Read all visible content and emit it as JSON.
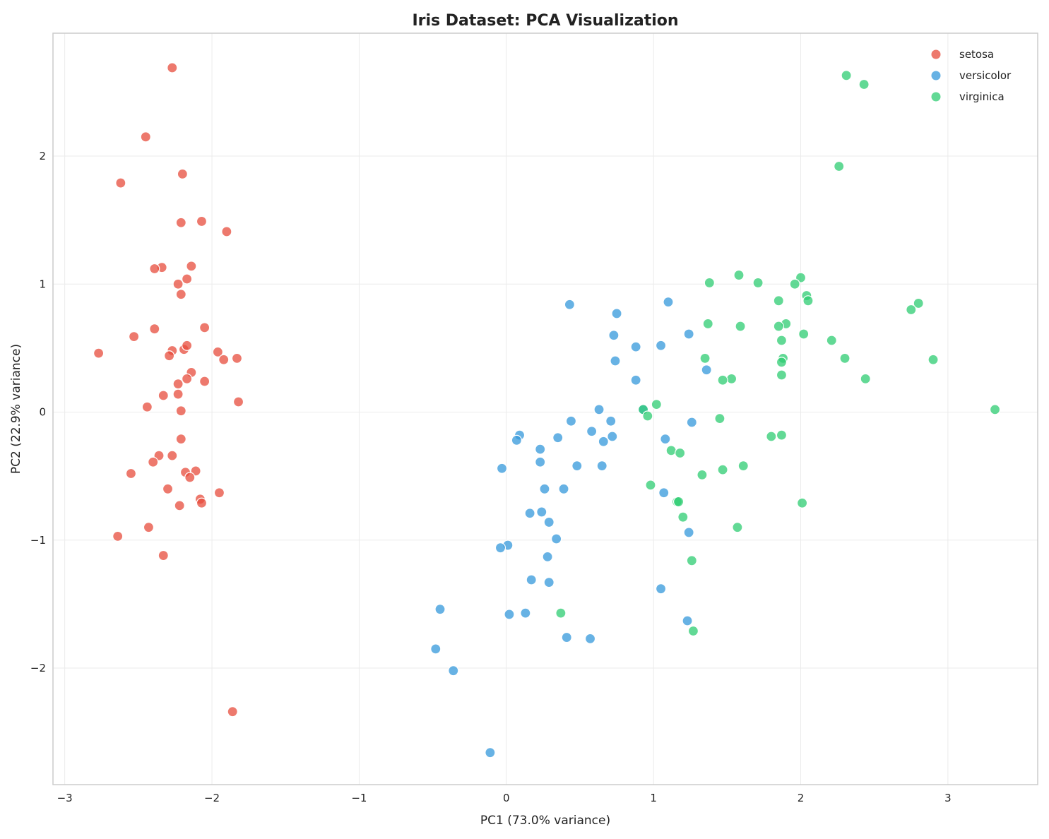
{
  "chart_data": {
    "type": "scatter",
    "title": "Iris Dataset: PCA Visualization",
    "xlabel": "PC1 (73.0% variance)",
    "ylabel": "PC2 (22.9% variance)",
    "xlim": [
      -3.08,
      3.61
    ],
    "ylim": [
      -2.91,
      2.96
    ],
    "xticks": [
      -3,
      -2,
      -1,
      0,
      1,
      2,
      3
    ],
    "yticks": [
      -2,
      -1,
      0,
      1,
      2
    ],
    "grid": true,
    "legend_position": "top-right",
    "series": [
      {
        "name": "setosa",
        "color": "#e74c3c",
        "points": [
          [
            -2.27,
            2.69
          ],
          [
            -2.45,
            2.15
          ],
          [
            -2.2,
            1.86
          ],
          [
            -2.62,
            1.79
          ],
          [
            -2.21,
            1.48
          ],
          [
            -2.07,
            1.49
          ],
          [
            -1.9,
            1.41
          ],
          [
            -2.34,
            1.13
          ],
          [
            -2.39,
            1.12
          ],
          [
            -2.14,
            1.14
          ],
          [
            -2.17,
            1.04
          ],
          [
            -2.23,
            1.0
          ],
          [
            -2.21,
            0.92
          ],
          [
            -2.39,
            0.65
          ],
          [
            -2.05,
            0.66
          ],
          [
            -2.53,
            0.59
          ],
          [
            -2.77,
            0.46
          ],
          [
            -2.27,
            0.48
          ],
          [
            -2.19,
            0.49
          ],
          [
            -2.17,
            0.52
          ],
          [
            -2.29,
            0.44
          ],
          [
            -1.96,
            0.47
          ],
          [
            -1.92,
            0.41
          ],
          [
            -1.83,
            0.42
          ],
          [
            -2.14,
            0.31
          ],
          [
            -2.17,
            0.26
          ],
          [
            -2.05,
            0.24
          ],
          [
            -2.23,
            0.22
          ],
          [
            -2.23,
            0.14
          ],
          [
            -2.33,
            0.13
          ],
          [
            -1.82,
            0.08
          ],
          [
            -2.44,
            0.04
          ],
          [
            -2.21,
            0.01
          ],
          [
            -2.21,
            -0.21
          ],
          [
            -2.36,
            -0.34
          ],
          [
            -2.27,
            -0.34
          ],
          [
            -2.4,
            -0.39
          ],
          [
            -2.55,
            -0.48
          ],
          [
            -2.18,
            -0.47
          ],
          [
            -2.11,
            -0.46
          ],
          [
            -2.15,
            -0.51
          ],
          [
            -2.3,
            -0.6
          ],
          [
            -1.95,
            -0.63
          ],
          [
            -2.08,
            -0.68
          ],
          [
            -2.07,
            -0.71
          ],
          [
            -2.22,
            -0.73
          ],
          [
            -2.43,
            -0.9
          ],
          [
            -2.64,
            -0.97
          ],
          [
            -2.33,
            -1.12
          ],
          [
            -1.86,
            -2.34
          ]
        ]
      },
      {
        "name": "versicolor",
        "color": "#3498db",
        "points": [
          [
            0.43,
            0.84
          ],
          [
            0.75,
            0.77
          ],
          [
            1.1,
            0.86
          ],
          [
            0.73,
            0.6
          ],
          [
            1.24,
            0.61
          ],
          [
            0.88,
            0.51
          ],
          [
            1.05,
            0.52
          ],
          [
            0.74,
            0.4
          ],
          [
            1.36,
            0.33
          ],
          [
            0.88,
            0.25
          ],
          [
            0.63,
            0.02
          ],
          [
            0.93,
            0.02
          ],
          [
            0.44,
            -0.07
          ],
          [
            0.71,
            -0.07
          ],
          [
            1.26,
            -0.08
          ],
          [
            0.58,
            -0.15
          ],
          [
            0.72,
            -0.19
          ],
          [
            0.35,
            -0.2
          ],
          [
            0.66,
            -0.23
          ],
          [
            1.08,
            -0.21
          ],
          [
            0.09,
            -0.18
          ],
          [
            0.07,
            -0.22
          ],
          [
            0.23,
            -0.29
          ],
          [
            0.23,
            -0.39
          ],
          [
            -0.03,
            -0.44
          ],
          [
            0.48,
            -0.42
          ],
          [
            0.65,
            -0.42
          ],
          [
            0.26,
            -0.6
          ],
          [
            0.39,
            -0.6
          ],
          [
            1.07,
            -0.63
          ],
          [
            0.16,
            -0.79
          ],
          [
            0.24,
            -0.78
          ],
          [
            0.29,
            -0.86
          ],
          [
            1.24,
            -0.94
          ],
          [
            0.34,
            -0.99
          ],
          [
            0.01,
            -1.04
          ],
          [
            -0.04,
            -1.06
          ],
          [
            0.28,
            -1.13
          ],
          [
            0.17,
            -1.31
          ],
          [
            0.29,
            -1.33
          ],
          [
            1.05,
            -1.38
          ],
          [
            -0.45,
            -1.54
          ],
          [
            0.13,
            -1.57
          ],
          [
            0.02,
            -1.58
          ],
          [
            1.23,
            -1.63
          ],
          [
            0.41,
            -1.76
          ],
          [
            0.57,
            -1.77
          ],
          [
            -0.48,
            -1.85
          ],
          [
            -0.36,
            -2.02
          ],
          [
            -0.11,
            -2.66
          ]
        ]
      },
      {
        "name": "virginica",
        "color": "#2ecc71",
        "points": [
          [
            2.31,
            2.63
          ],
          [
            2.43,
            2.56
          ],
          [
            2.26,
            1.92
          ],
          [
            1.58,
            1.07
          ],
          [
            1.71,
            1.01
          ],
          [
            1.38,
            1.01
          ],
          [
            2.0,
            1.05
          ],
          [
            1.96,
            1.0
          ],
          [
            2.04,
            0.91
          ],
          [
            2.05,
            0.87
          ],
          [
            1.85,
            0.87
          ],
          [
            2.8,
            0.85
          ],
          [
            2.75,
            0.8
          ],
          [
            1.37,
            0.69
          ],
          [
            1.59,
            0.67
          ],
          [
            1.9,
            0.69
          ],
          [
            1.85,
            0.67
          ],
          [
            2.02,
            0.61
          ],
          [
            2.21,
            0.56
          ],
          [
            1.87,
            0.56
          ],
          [
            1.35,
            0.42
          ],
          [
            2.3,
            0.42
          ],
          [
            2.9,
            0.41
          ],
          [
            1.88,
            0.42
          ],
          [
            1.87,
            0.39
          ],
          [
            1.53,
            0.26
          ],
          [
            1.47,
            0.25
          ],
          [
            2.44,
            0.26
          ],
          [
            1.87,
            0.29
          ],
          [
            1.02,
            0.06
          ],
          [
            0.93,
            0.02
          ],
          [
            3.32,
            0.02
          ],
          [
            0.96,
            -0.03
          ],
          [
            1.45,
            -0.05
          ],
          [
            1.8,
            -0.19
          ],
          [
            1.87,
            -0.18
          ],
          [
            1.12,
            -0.3
          ],
          [
            1.18,
            -0.32
          ],
          [
            1.61,
            -0.42
          ],
          [
            1.47,
            -0.45
          ],
          [
            1.33,
            -0.49
          ],
          [
            0.98,
            -0.57
          ],
          [
            1.16,
            -0.7
          ],
          [
            1.17,
            -0.7
          ],
          [
            2.01,
            -0.71
          ],
          [
            1.2,
            -0.82
          ],
          [
            1.57,
            -0.9
          ],
          [
            1.26,
            -1.16
          ],
          [
            0.37,
            -1.57
          ],
          [
            1.27,
            -1.71
          ]
        ]
      }
    ]
  }
}
